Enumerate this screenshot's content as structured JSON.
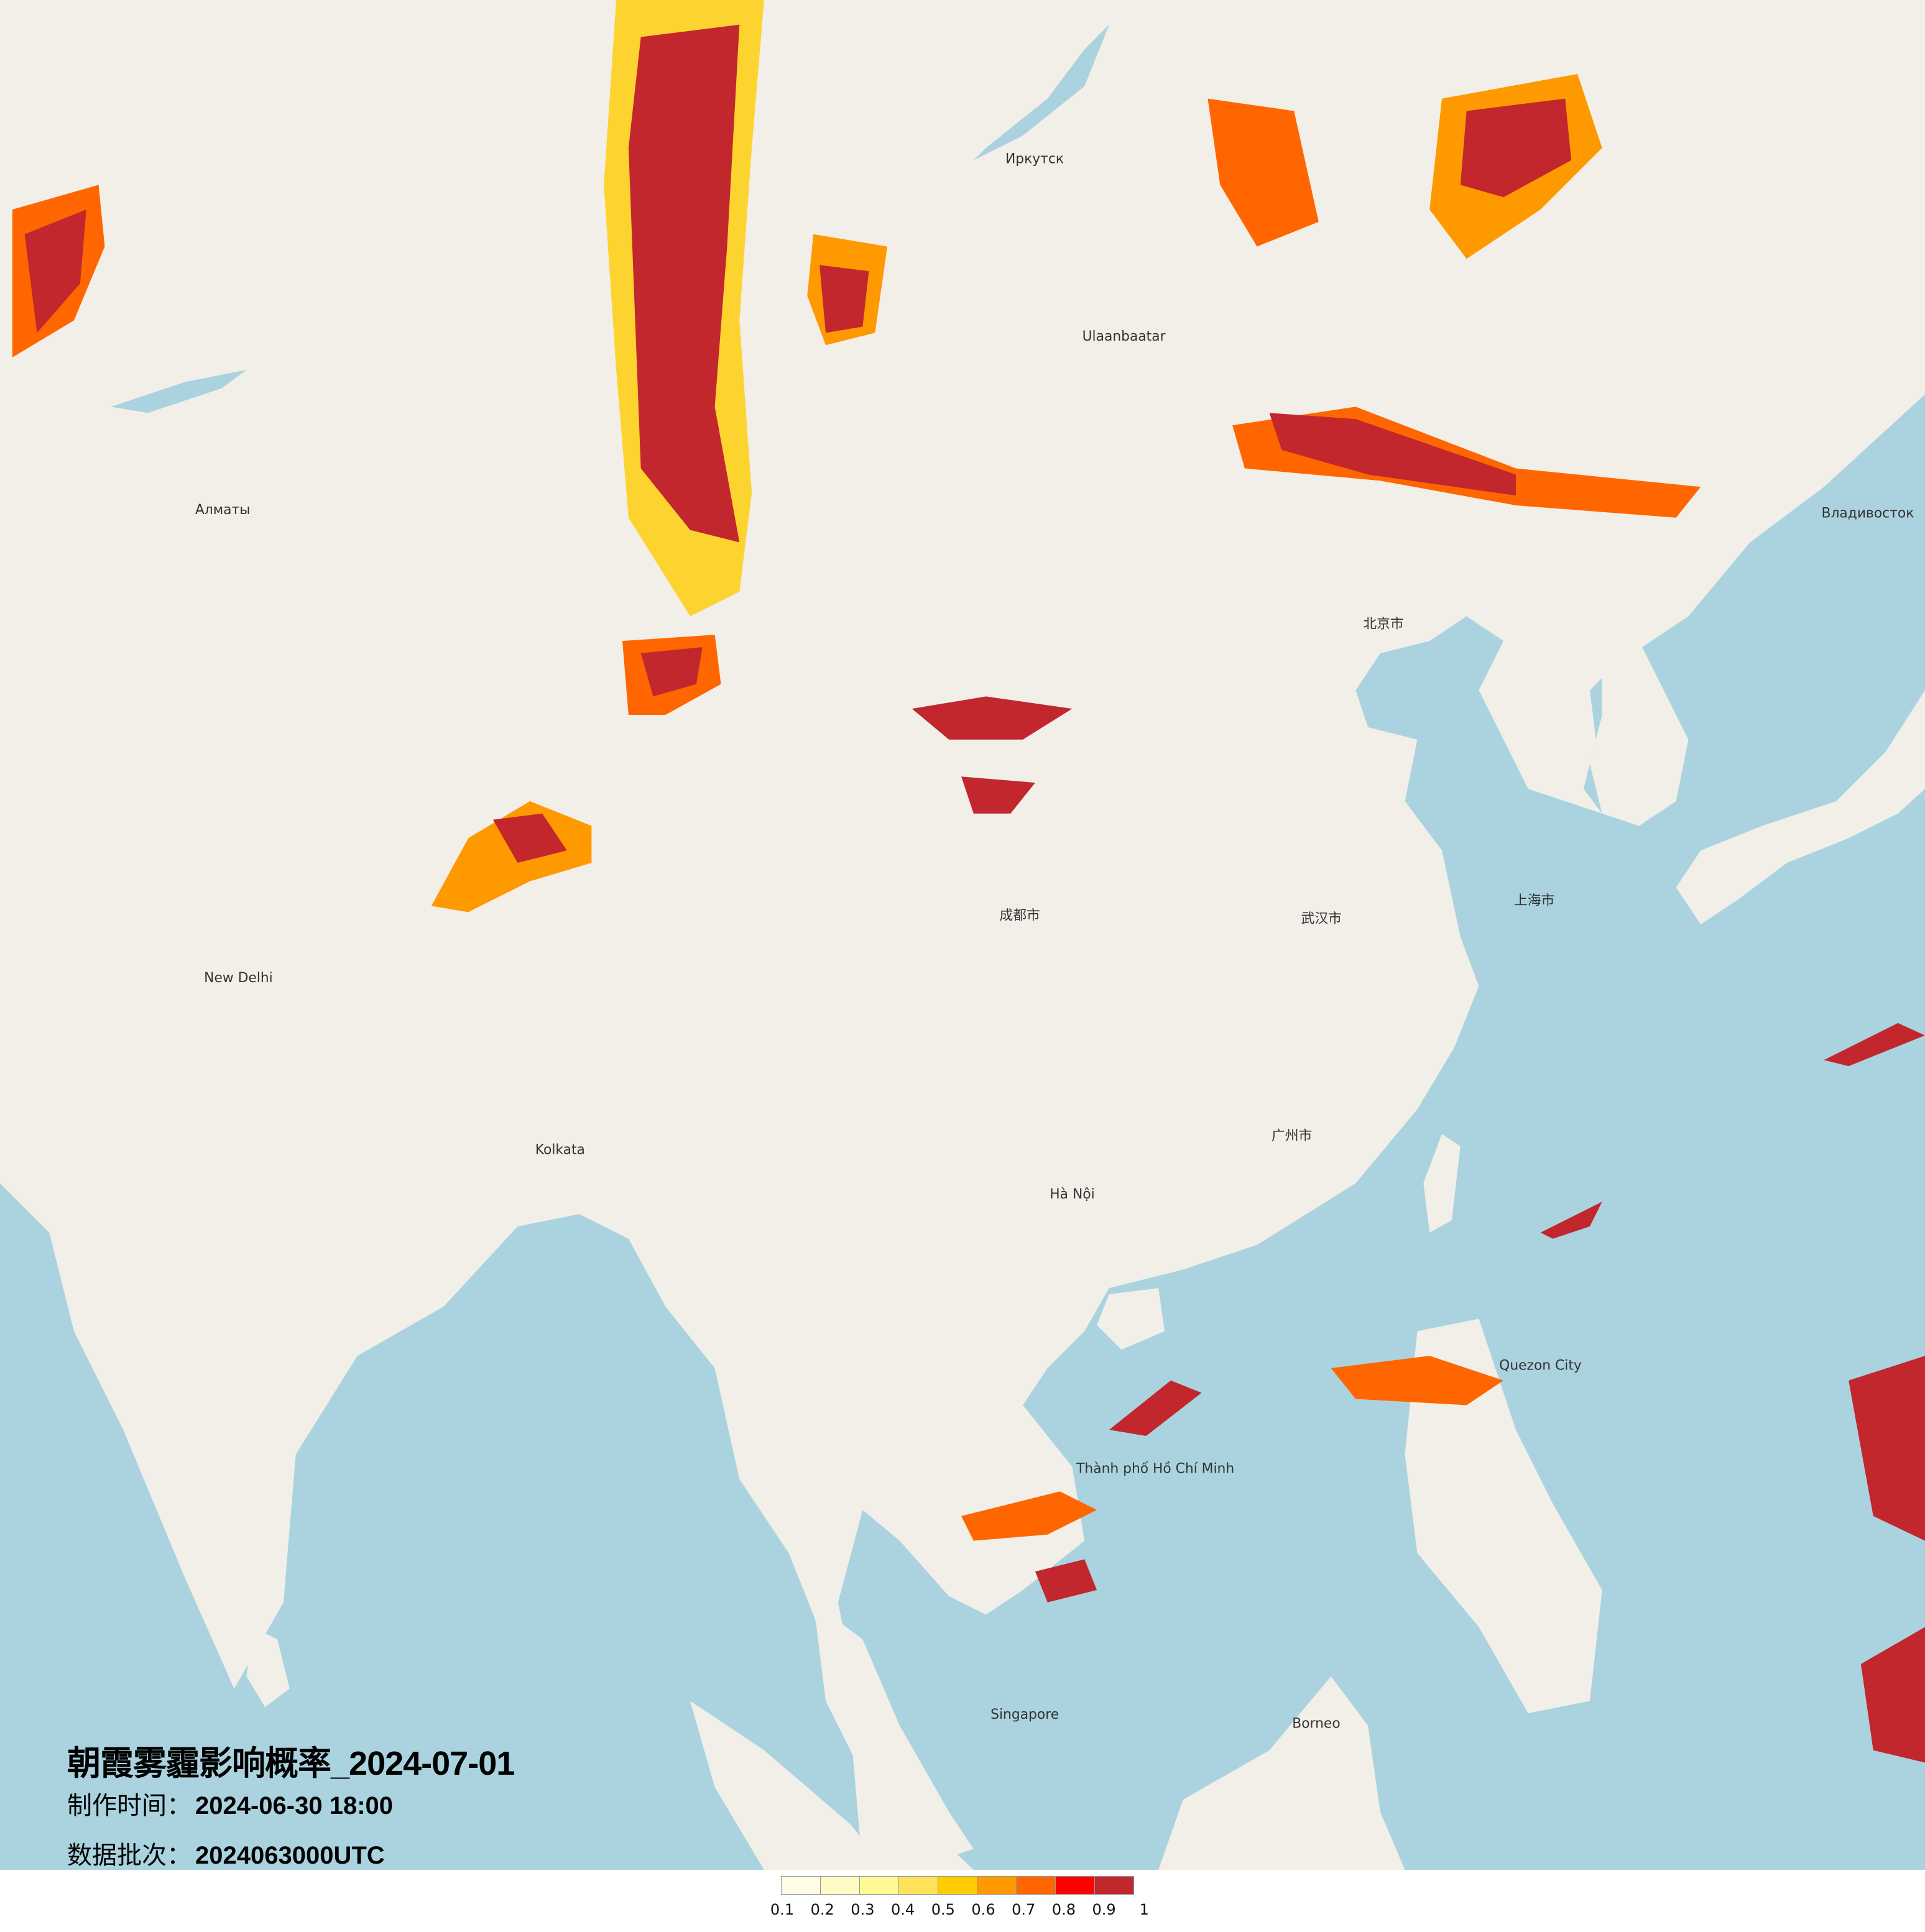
{
  "title": "朝霞雾霾影响概率_2024-07-01",
  "production_time": {
    "label": "制作时间：",
    "value": "2024-06-30 18:00"
  },
  "data_batch": {
    "label": "数据批次：",
    "value": "2024063000UTC"
  },
  "map": {
    "land_color": "#f2efe9",
    "sea_color": "#aad3df",
    "cities": [
      {
        "name": "Ulaanbaatar",
        "lon": 106.9,
        "lat": 47.9
      },
      {
        "name": "北京市",
        "lon": 116.4,
        "lat": 39.9
      },
      {
        "name": "上海市",
        "lon": 121.5,
        "lat": 31.2
      },
      {
        "name": "武汉市",
        "lon": 114.3,
        "lat": 30.6
      },
      {
        "name": "成都市",
        "lon": 104.1,
        "lat": 30.7
      },
      {
        "name": "广州市",
        "lon": 113.3,
        "lat": 23.1
      },
      {
        "name": "Hà Nội",
        "lon": 105.8,
        "lat": 21.0
      },
      {
        "name": "Thành phố Hồ Chí Minh",
        "lon": 106.7,
        "lat": 10.8
      },
      {
        "name": "Quezon City",
        "lon": 121.0,
        "lat": 14.7
      },
      {
        "name": "New Delhi",
        "lon": 77.2,
        "lat": 28.6
      },
      {
        "name": "Kolkata",
        "lon": 88.4,
        "lat": 22.6
      },
      {
        "name": "Алматы",
        "lon": 76.9,
        "lat": 43.2
      },
      {
        "name": "Иркутск",
        "lon": 104.3,
        "lat": 52.3
      },
      {
        "name": "Владивосток",
        "lon": 131.9,
        "lat": 43.1
      },
      {
        "name": "Singapore",
        "lon": 103.8,
        "lat": 1.35
      },
      {
        "name": "Borneo",
        "lon": 114.0,
        "lat": 1.0
      }
    ]
  },
  "legend": {
    "ticks": [
      "0.1",
      "0.2",
      "0.3",
      "0.4",
      "0.5",
      "0.6",
      "0.7",
      "0.8",
      "0.9",
      "1"
    ],
    "colors": [
      "#fffde8",
      "#fffbc4",
      "#fffa96",
      "#ffe15a",
      "#ffcc00",
      "#ff9900",
      "#ff6600",
      "#ff0000",
      "#c1272d"
    ]
  }
}
